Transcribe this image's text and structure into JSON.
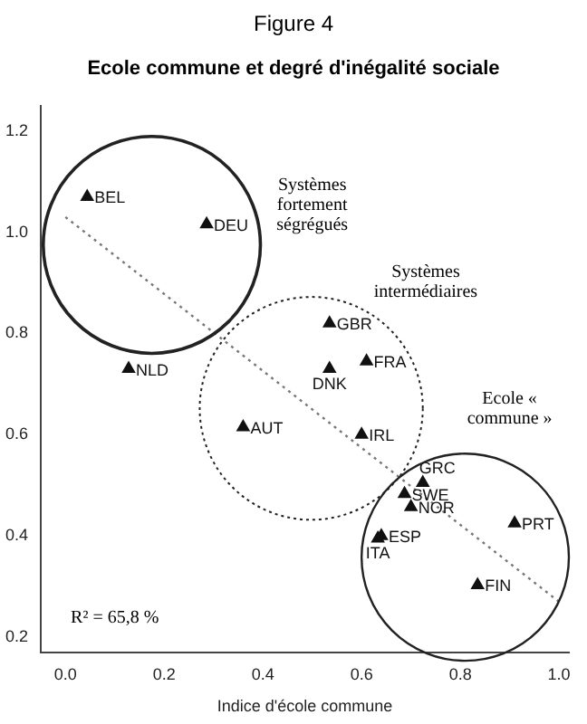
{
  "chart_data": {
    "type": "scatter",
    "title": "Figure 4",
    "subtitle": "Ecole commune et degré d'inégalité sociale",
    "xlabel": "Indice d'école commune",
    "xlim": [
      -0.05,
      1.02
    ],
    "ylim": [
      0.17,
      1.25
    ],
    "xticks": [
      {
        "value": 0,
        "label": "0.0"
      },
      {
        "value": 0.2,
        "label": "0.2"
      },
      {
        "value": 0.4,
        "label": "0.4"
      },
      {
        "value": 0.6,
        "label": "0.6"
      },
      {
        "value": 0.8,
        "label": "0.8"
      },
      {
        "value": 1,
        "label": "1.0"
      }
    ],
    "yticks": [
      {
        "value": 0.2,
        "label": "0.2"
      },
      {
        "value": 0.4,
        "label": "0.4"
      },
      {
        "value": 0.6,
        "label": "0.6"
      },
      {
        "value": 0.8,
        "label": "0.8"
      },
      {
        "value": 1,
        "label": "1.0"
      },
      {
        "value": 1.2,
        "label": "1.2"
      }
    ],
    "grid": false,
    "legend": false,
    "marker": "triangle",
    "series": [
      {
        "color": "#111111",
        "x": [
          0.044,
          0.286,
          0.128,
          0.36,
          0.535,
          0.535,
          0.61,
          0.6,
          0.724,
          0.687,
          0.7,
          0.64,
          0.633,
          0.91,
          0.835
        ],
        "values": [
          1.07,
          1.016,
          0.73,
          0.615,
          0.82,
          0.73,
          0.745,
          0.6,
          0.505,
          0.483,
          0.457,
          0.4,
          0.395,
          0.425,
          0.303
        ],
        "value_labels": [
          "BEL",
          "DEU",
          "NLD",
          "AUT",
          "GBR",
          "DNK",
          "FRA",
          "IRL",
          "GRC",
          "SWE",
          "NOR",
          "ESP",
          "ITA",
          "PRT",
          "FIN"
        ]
      },
      {
        "type": "line",
        "color": "#777777",
        "line_style": "dotted",
        "marker": "none",
        "x": [
          0,
          1
        ],
        "values": [
          1.03,
          0.27
        ]
      }
    ],
    "annotations": [
      "Systèmes fortement ségrégués",
      "Systèmes intermédiaires",
      "Ecole « commune »",
      "R² = 65,8 %"
    ]
  }
}
